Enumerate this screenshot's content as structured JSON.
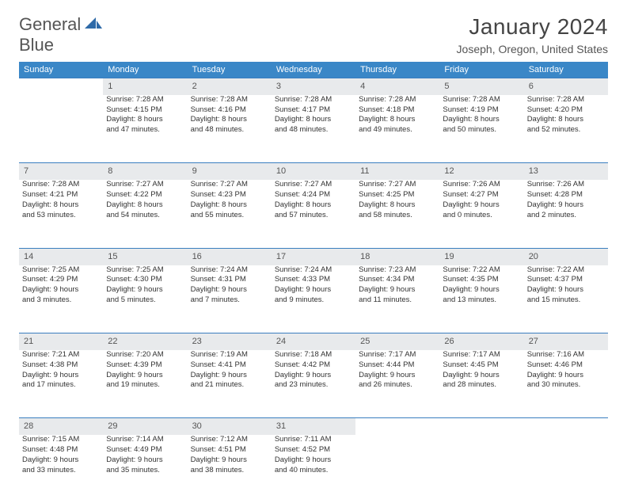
{
  "logo": {
    "word1": "General",
    "word2": "Blue"
  },
  "header": {
    "title": "January 2024",
    "location": "Joseph, Oregon, United States"
  },
  "styling": {
    "header_bg": "#3a87c7",
    "header_text": "#ffffff",
    "daynum_bg": "#e8eaec",
    "daynum_text": "#555555",
    "row_border": "#3a7ebf",
    "body_text": "#333333",
    "page_bg": "#ffffff",
    "font_family": "Arial",
    "title_fontsize": 28,
    "location_fontsize": 14,
    "weekday_fontsize": 11,
    "cell_fontsize": 9.5
  },
  "weekdays": [
    "Sunday",
    "Monday",
    "Tuesday",
    "Wednesday",
    "Thursday",
    "Friday",
    "Saturday"
  ],
  "weeks": [
    {
      "nums": [
        "",
        "1",
        "2",
        "3",
        "4",
        "5",
        "6"
      ],
      "cells": [
        null,
        {
          "sunrise": "Sunrise: 7:28 AM",
          "sunset": "Sunset: 4:15 PM",
          "day1": "Daylight: 8 hours",
          "day2": "and 47 minutes."
        },
        {
          "sunrise": "Sunrise: 7:28 AM",
          "sunset": "Sunset: 4:16 PM",
          "day1": "Daylight: 8 hours",
          "day2": "and 48 minutes."
        },
        {
          "sunrise": "Sunrise: 7:28 AM",
          "sunset": "Sunset: 4:17 PM",
          "day1": "Daylight: 8 hours",
          "day2": "and 48 minutes."
        },
        {
          "sunrise": "Sunrise: 7:28 AM",
          "sunset": "Sunset: 4:18 PM",
          "day1": "Daylight: 8 hours",
          "day2": "and 49 minutes."
        },
        {
          "sunrise": "Sunrise: 7:28 AM",
          "sunset": "Sunset: 4:19 PM",
          "day1": "Daylight: 8 hours",
          "day2": "and 50 minutes."
        },
        {
          "sunrise": "Sunrise: 7:28 AM",
          "sunset": "Sunset: 4:20 PM",
          "day1": "Daylight: 8 hours",
          "day2": "and 52 minutes."
        }
      ]
    },
    {
      "nums": [
        "7",
        "8",
        "9",
        "10",
        "11",
        "12",
        "13"
      ],
      "cells": [
        {
          "sunrise": "Sunrise: 7:28 AM",
          "sunset": "Sunset: 4:21 PM",
          "day1": "Daylight: 8 hours",
          "day2": "and 53 minutes."
        },
        {
          "sunrise": "Sunrise: 7:27 AM",
          "sunset": "Sunset: 4:22 PM",
          "day1": "Daylight: 8 hours",
          "day2": "and 54 minutes."
        },
        {
          "sunrise": "Sunrise: 7:27 AM",
          "sunset": "Sunset: 4:23 PM",
          "day1": "Daylight: 8 hours",
          "day2": "and 55 minutes."
        },
        {
          "sunrise": "Sunrise: 7:27 AM",
          "sunset": "Sunset: 4:24 PM",
          "day1": "Daylight: 8 hours",
          "day2": "and 57 minutes."
        },
        {
          "sunrise": "Sunrise: 7:27 AM",
          "sunset": "Sunset: 4:25 PM",
          "day1": "Daylight: 8 hours",
          "day2": "and 58 minutes."
        },
        {
          "sunrise": "Sunrise: 7:26 AM",
          "sunset": "Sunset: 4:27 PM",
          "day1": "Daylight: 9 hours",
          "day2": "and 0 minutes."
        },
        {
          "sunrise": "Sunrise: 7:26 AM",
          "sunset": "Sunset: 4:28 PM",
          "day1": "Daylight: 9 hours",
          "day2": "and 2 minutes."
        }
      ]
    },
    {
      "nums": [
        "14",
        "15",
        "16",
        "17",
        "18",
        "19",
        "20"
      ],
      "cells": [
        {
          "sunrise": "Sunrise: 7:25 AM",
          "sunset": "Sunset: 4:29 PM",
          "day1": "Daylight: 9 hours",
          "day2": "and 3 minutes."
        },
        {
          "sunrise": "Sunrise: 7:25 AM",
          "sunset": "Sunset: 4:30 PM",
          "day1": "Daylight: 9 hours",
          "day2": "and 5 minutes."
        },
        {
          "sunrise": "Sunrise: 7:24 AM",
          "sunset": "Sunset: 4:31 PM",
          "day1": "Daylight: 9 hours",
          "day2": "and 7 minutes."
        },
        {
          "sunrise": "Sunrise: 7:24 AM",
          "sunset": "Sunset: 4:33 PM",
          "day1": "Daylight: 9 hours",
          "day2": "and 9 minutes."
        },
        {
          "sunrise": "Sunrise: 7:23 AM",
          "sunset": "Sunset: 4:34 PM",
          "day1": "Daylight: 9 hours",
          "day2": "and 11 minutes."
        },
        {
          "sunrise": "Sunrise: 7:22 AM",
          "sunset": "Sunset: 4:35 PM",
          "day1": "Daylight: 9 hours",
          "day2": "and 13 minutes."
        },
        {
          "sunrise": "Sunrise: 7:22 AM",
          "sunset": "Sunset: 4:37 PM",
          "day1": "Daylight: 9 hours",
          "day2": "and 15 minutes."
        }
      ]
    },
    {
      "nums": [
        "21",
        "22",
        "23",
        "24",
        "25",
        "26",
        "27"
      ],
      "cells": [
        {
          "sunrise": "Sunrise: 7:21 AM",
          "sunset": "Sunset: 4:38 PM",
          "day1": "Daylight: 9 hours",
          "day2": "and 17 minutes."
        },
        {
          "sunrise": "Sunrise: 7:20 AM",
          "sunset": "Sunset: 4:39 PM",
          "day1": "Daylight: 9 hours",
          "day2": "and 19 minutes."
        },
        {
          "sunrise": "Sunrise: 7:19 AM",
          "sunset": "Sunset: 4:41 PM",
          "day1": "Daylight: 9 hours",
          "day2": "and 21 minutes."
        },
        {
          "sunrise": "Sunrise: 7:18 AM",
          "sunset": "Sunset: 4:42 PM",
          "day1": "Daylight: 9 hours",
          "day2": "and 23 minutes."
        },
        {
          "sunrise": "Sunrise: 7:17 AM",
          "sunset": "Sunset: 4:44 PM",
          "day1": "Daylight: 9 hours",
          "day2": "and 26 minutes."
        },
        {
          "sunrise": "Sunrise: 7:17 AM",
          "sunset": "Sunset: 4:45 PM",
          "day1": "Daylight: 9 hours",
          "day2": "and 28 minutes."
        },
        {
          "sunrise": "Sunrise: 7:16 AM",
          "sunset": "Sunset: 4:46 PM",
          "day1": "Daylight: 9 hours",
          "day2": "and 30 minutes."
        }
      ]
    },
    {
      "nums": [
        "28",
        "29",
        "30",
        "31",
        "",
        "",
        ""
      ],
      "cells": [
        {
          "sunrise": "Sunrise: 7:15 AM",
          "sunset": "Sunset: 4:48 PM",
          "day1": "Daylight: 9 hours",
          "day2": "and 33 minutes."
        },
        {
          "sunrise": "Sunrise: 7:14 AM",
          "sunset": "Sunset: 4:49 PM",
          "day1": "Daylight: 9 hours",
          "day2": "and 35 minutes."
        },
        {
          "sunrise": "Sunrise: 7:12 AM",
          "sunset": "Sunset: 4:51 PM",
          "day1": "Daylight: 9 hours",
          "day2": "and 38 minutes."
        },
        {
          "sunrise": "Sunrise: 7:11 AM",
          "sunset": "Sunset: 4:52 PM",
          "day1": "Daylight: 9 hours",
          "day2": "and 40 minutes."
        },
        null,
        null,
        null
      ]
    }
  ]
}
